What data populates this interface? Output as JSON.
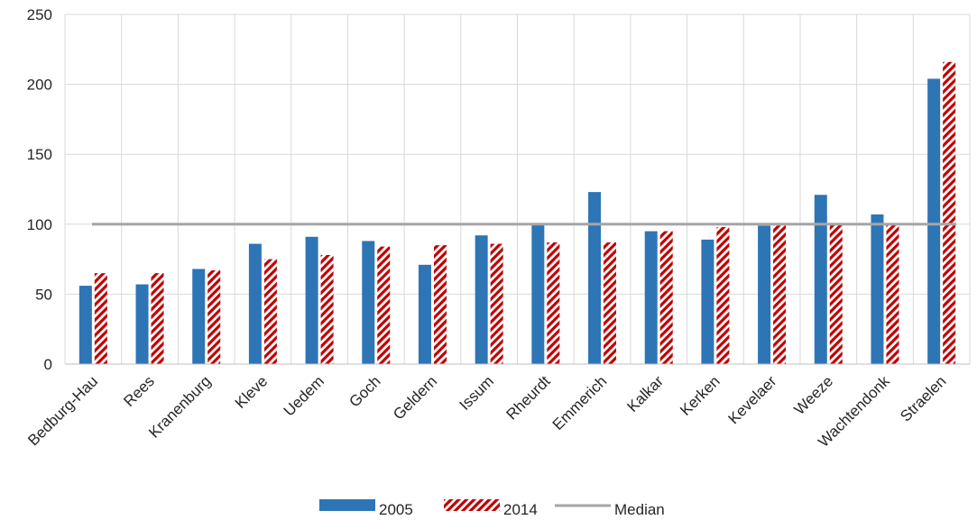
{
  "chart_data": {
    "type": "bar",
    "title": "",
    "xlabel": "",
    "ylabel": "",
    "ylim": [
      0,
      250
    ],
    "yticks": [
      0,
      50,
      100,
      150,
      200,
      250
    ],
    "grid": true,
    "legend_position": "bottom",
    "categories": [
      "Bedburg-Hau",
      "Rees",
      "Kranenburg",
      "Kleve",
      "Uedem",
      "Goch",
      "Geldern",
      "Issum",
      "Rheurdt",
      "Emmerich",
      "Kalkar",
      "Kerken",
      "Kevelaer",
      "Weeze",
      "Wachtendonk",
      "Straelen"
    ],
    "series": [
      {
        "name": "2005",
        "color": "#2e75b6",
        "pattern": "solid",
        "values": [
          56,
          57,
          68,
          86,
          91,
          88,
          71,
          92,
          100,
          123,
          95,
          89,
          99,
          121,
          107,
          204
        ]
      },
      {
        "name": "2014",
        "color": "#c00000",
        "pattern": "hatched",
        "values": [
          65,
          65,
          67,
          75,
          78,
          84,
          85,
          86,
          87,
          87,
          95,
          98,
          99,
          100,
          100,
          216
        ]
      }
    ],
    "reference_line": {
      "name": "Median",
      "value": 100,
      "color": "#a6a6a6"
    }
  }
}
